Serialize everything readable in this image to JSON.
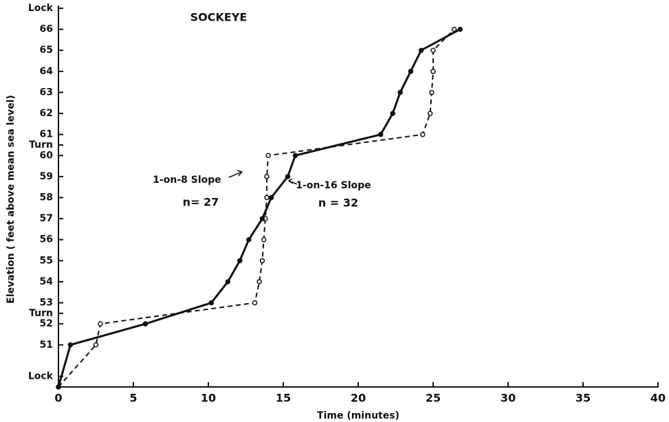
{
  "chart_data": {
    "type": "line",
    "title": "SOCKEYE",
    "x_label": "Time (minutes)",
    "y_label": "Elevation ( feet above mean sea level)",
    "xlim": [
      0,
      40
    ],
    "xticks": [
      0,
      5,
      10,
      15,
      20,
      25,
      30,
      35,
      40
    ],
    "ylim": [
      49,
      67
    ],
    "yticks": [
      {
        "value": 49.5,
        "label": "Lock"
      },
      51,
      52,
      {
        "value": 52.5,
        "label": "Turn"
      },
      53,
      54,
      55,
      56,
      57,
      58,
      59,
      60,
      {
        "value": 60.5,
        "label": "Turn"
      },
      61,
      62,
      63,
      64,
      65,
      66,
      {
        "value": 67,
        "label": "Lock"
      }
    ],
    "series": [
      {
        "name": "1-on-8 Slope",
        "color": "#111111",
        "dash": true,
        "x": [
          0,
          2.5,
          2.8,
          13.1,
          13.4,
          13.6,
          13.7,
          13.8,
          13.9,
          13.9,
          14.0,
          24.3,
          24.8,
          24.9,
          25.0,
          25.0,
          26.4
        ],
        "values": [
          49,
          51,
          52,
          53,
          54,
          55,
          56,
          57,
          58,
          59,
          60,
          61,
          62,
          63,
          64,
          65,
          66
        ]
      },
      {
        "name": "1-on-16 Slope",
        "color": "#111111",
        "dash": false,
        "x": [
          0,
          0.8,
          5.8,
          10.2,
          11.3,
          12.1,
          12.7,
          13.6,
          14.2,
          15.3,
          15.8,
          21.5,
          22.3,
          22.8,
          23.5,
          24.2,
          26.8
        ],
        "values": [
          49,
          51,
          52,
          53,
          54,
          55,
          56,
          57,
          58,
          59,
          60,
          61,
          62,
          63,
          64,
          65,
          66
        ]
      }
    ],
    "annotations": [
      "n= 27",
      "n = 32"
    ]
  }
}
